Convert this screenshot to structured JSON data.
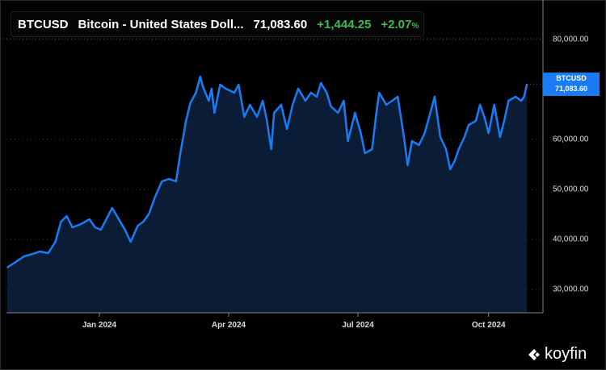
{
  "header": {
    "symbol": "BTCUSD",
    "name": "Bitcoin - United States Doll...",
    "price": "71,083.60",
    "change": "+1,444.25",
    "change_pct": "+2.07",
    "pct_sign": "%"
  },
  "price_tag": {
    "symbol": "BTCUSD",
    "value": "71,083.60"
  },
  "brand": {
    "name": "koyfin"
  },
  "colors": {
    "line": "#1a7cf5",
    "fill": "#0b1d36",
    "up": "#3fb950"
  },
  "chart_data": {
    "type": "area",
    "title": "BTCUSD Bitcoin - United States Dollar",
    "x_unit": "days since 2024-01-01",
    "y_ticks": [
      {
        "value": 80000,
        "label": "80,000.00"
      },
      {
        "value": 60000,
        "label": "60,000.00"
      },
      {
        "value": 50000,
        "label": "50,000.00"
      },
      {
        "value": 40000,
        "label": "40,000.00"
      },
      {
        "value": 30000,
        "label": "30,000.00"
      }
    ],
    "x_ticks": [
      {
        "t": 0,
        "label": "Jan 2024"
      },
      {
        "t": 91,
        "label": "Apr 2024"
      },
      {
        "t": 182,
        "label": "Jul 2024"
      },
      {
        "t": 274,
        "label": "Oct 2024"
      }
    ],
    "ylim": [
      25000,
      86000
    ],
    "points": [
      [
        -65,
        34350
      ],
      [
        -59,
        35480
      ],
      [
        -53,
        36610
      ],
      [
        -47,
        37090
      ],
      [
        -42,
        37580
      ],
      [
        -36,
        37260
      ],
      [
        -31,
        39510
      ],
      [
        -27,
        43550
      ],
      [
        -23,
        44680
      ],
      [
        -19,
        42420
      ],
      [
        -13,
        43060
      ],
      [
        -7,
        44030
      ],
      [
        -3,
        42420
      ],
      [
        1,
        41930
      ],
      [
        4,
        43550
      ],
      [
        9,
        46290
      ],
      [
        13,
        44350
      ],
      [
        18,
        41930
      ],
      [
        22,
        39510
      ],
      [
        27,
        42740
      ],
      [
        31,
        43550
      ],
      [
        35,
        45160
      ],
      [
        39,
        48390
      ],
      [
        44,
        51610
      ],
      [
        49,
        52100
      ],
      [
        54,
        51610
      ],
      [
        57,
        57260
      ],
      [
        61,
        63710
      ],
      [
        64,
        67260
      ],
      [
        68,
        69350
      ],
      [
        71,
        72580
      ],
      [
        73,
        70480
      ],
      [
        77,
        67740
      ],
      [
        79,
        70160
      ],
      [
        81,
        65320
      ],
      [
        85,
        70970
      ],
      [
        89,
        70160
      ],
      [
        95,
        69350
      ],
      [
        98,
        70970
      ],
      [
        102,
        64520
      ],
      [
        106,
        66930
      ],
      [
        111,
        64520
      ],
      [
        115,
        67740
      ],
      [
        118,
        63710
      ],
      [
        121,
        58060
      ],
      [
        123,
        65320
      ],
      [
        128,
        66930
      ],
      [
        132,
        62100
      ],
      [
        136,
        66930
      ],
      [
        140,
        70160
      ],
      [
        145,
        67740
      ],
      [
        149,
        69350
      ],
      [
        153,
        68550
      ],
      [
        156,
        71290
      ],
      [
        160,
        69350
      ],
      [
        163,
        66610
      ],
      [
        168,
        65320
      ],
      [
        172,
        67740
      ],
      [
        175,
        59680
      ],
      [
        180,
        65320
      ],
      [
        184,
        61290
      ],
      [
        187,
        57260
      ],
      [
        192,
        58060
      ],
      [
        195,
        65320
      ],
      [
        197,
        69350
      ],
      [
        202,
        66930
      ],
      [
        206,
        67740
      ],
      [
        210,
        68550
      ],
      [
        214,
        61290
      ],
      [
        217,
        54840
      ],
      [
        220,
        59680
      ],
      [
        225,
        58870
      ],
      [
        229,
        61290
      ],
      [
        233,
        65320
      ],
      [
        236,
        68550
      ],
      [
        240,
        60480
      ],
      [
        244,
        58060
      ],
      [
        247,
        54030
      ],
      [
        250,
        55640
      ],
      [
        253,
        58060
      ],
      [
        257,
        60480
      ],
      [
        260,
        62900
      ],
      [
        265,
        63710
      ],
      [
        268,
        66930
      ],
      [
        271,
        64520
      ],
      [
        274,
        61290
      ],
      [
        278,
        66930
      ],
      [
        282,
        60480
      ],
      [
        285,
        63710
      ],
      [
        288,
        67740
      ],
      [
        293,
        68550
      ],
      [
        297,
        67740
      ],
      [
        299,
        68550
      ],
      [
        301,
        71083.6
      ]
    ]
  }
}
